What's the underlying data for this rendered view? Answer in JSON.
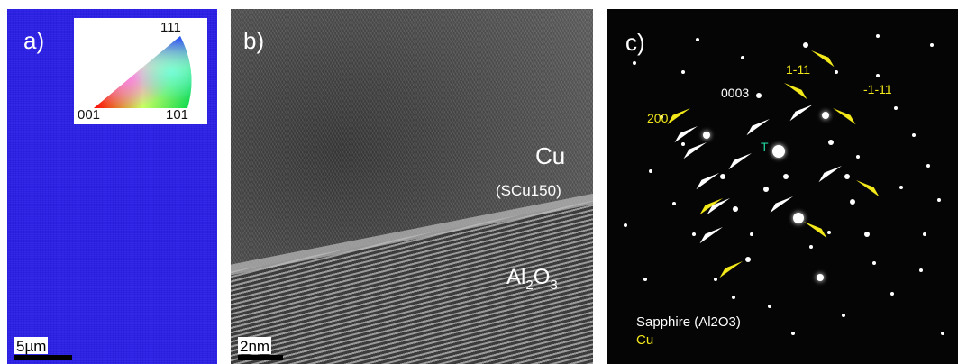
{
  "panel_a": {
    "label": "a)",
    "triangle": {
      "top": "111",
      "bottom_left": "001",
      "bottom_right": "101"
    },
    "scale_bar": "5µm",
    "map_color": "#2a1fe6"
  },
  "panel_b": {
    "label": "b)",
    "film": "Cu",
    "film_sub": "(SCu150)",
    "substrate_main": "Al",
    "substrate_sub": "2",
    "substrate_end": "O",
    "substrate_sub2": "3",
    "scale_bar": "2nm"
  },
  "panel_c": {
    "label": "c)",
    "spot_labels": {
      "cu_1m11": "1-11",
      "cu_m1m11": "-1-11",
      "cu_200": "200",
      "sapphire_0003": "0003",
      "transmitted": "T"
    },
    "legend": {
      "sapphire": "Sapphire (Al2O3)",
      "cu": "Cu"
    },
    "colors": {
      "sapphire_arrow": "#ffffff",
      "cu_arrow": "#f2e81a",
      "spot": "#ffffff"
    }
  }
}
